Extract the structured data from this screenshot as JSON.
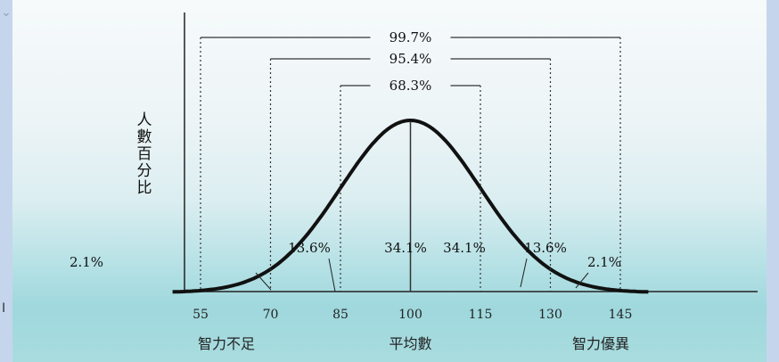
{
  "chart_data": {
    "type": "line",
    "x_ticks": [
      55,
      70,
      85,
      100,
      115,
      130,
      145
    ],
    "mean": 100,
    "sd": 15,
    "ylabel": "人數百分比",
    "band_labels": [
      "99.7%",
      "95.4%",
      "68.3%"
    ],
    "bands": [
      {
        "label": "99.7%",
        "from": 55,
        "to": 145
      },
      {
        "label": "95.4%",
        "from": 70,
        "to": 130
      },
      {
        "label": "68.3%",
        "from": 85,
        "to": 115
      }
    ],
    "segments": [
      {
        "label": "2.1%",
        "from": 55,
        "to": 70
      },
      {
        "label": "13.6%",
        "from": 70,
        "to": 85
      },
      {
        "label": "34.1%",
        "from": 85,
        "to": 100
      },
      {
        "label": "34.1%",
        "from": 100,
        "to": 115
      },
      {
        "label": "13.6%",
        "from": 115,
        "to": 130
      },
      {
        "label": "2.1%",
        "from": 130,
        "to": 145
      }
    ],
    "region_labels": {
      "low": "智力不足",
      "mid": "平均數",
      "high": "智力優異"
    },
    "colors": {
      "curve": "#111111",
      "guide": "#333333"
    }
  },
  "decor": {
    "edge_mark": "I"
  }
}
